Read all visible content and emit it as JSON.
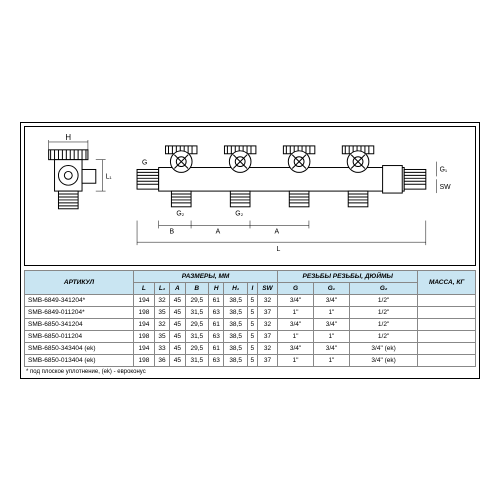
{
  "diagram": {
    "labels": {
      "H": "H",
      "L1": "L₁",
      "H1": "H₁",
      "B": "B",
      "A": "A",
      "L": "L",
      "G": "G",
      "G1": "G₁",
      "G2": "G₂",
      "SW": "SW",
      "I": "I"
    }
  },
  "table": {
    "header_col_article": "АРТИКУЛ",
    "header_group_dims": "РАЗМЕРЫ, ММ",
    "header_group_threads": "РЕЗЬБЫ РЕЗЬБЫ, ДЮЙМЫ",
    "header_mass": "МАССА, КГ",
    "cols_dims": [
      "L",
      "L₁",
      "A",
      "B",
      "H",
      "H₁",
      "I",
      "SW"
    ],
    "cols_threads": [
      "G",
      "G₁",
      "G₂"
    ],
    "rows": [
      {
        "art": "SMB-6849-341204*",
        "L": "194",
        "L1": "32",
        "A": "45",
        "B": "29,5",
        "H": "61",
        "H1": "38,5",
        "I": "5",
        "SW": "32",
        "G": "3/4\"",
        "G1": "3/4\"",
        "G2": "1/2\"",
        "mass": ""
      },
      {
        "art": "SMB-6849-011204*",
        "L": "198",
        "L1": "35",
        "A": "45",
        "B": "31,5",
        "H": "63",
        "H1": "38,5",
        "I": "5",
        "SW": "37",
        "G": "1\"",
        "G1": "1\"",
        "G2": "1/2\"",
        "mass": ""
      },
      {
        "art": "SMB-6850-341204",
        "L": "194",
        "L1": "32",
        "A": "45",
        "B": "29,5",
        "H": "61",
        "H1": "38,5",
        "I": "5",
        "SW": "32",
        "G": "3/4\"",
        "G1": "3/4\"",
        "G2": "1/2\"",
        "mass": ""
      },
      {
        "art": "SMB-6850-011204",
        "L": "198",
        "L1": "35",
        "A": "45",
        "B": "31,5",
        "H": "63",
        "H1": "38,5",
        "I": "5",
        "SW": "37",
        "G": "1\"",
        "G1": "1\"",
        "G2": "1/2\"",
        "mass": ""
      },
      {
        "art": "SMB-6850-343404 (ek)",
        "L": "194",
        "L1": "33",
        "A": "45",
        "B": "29,5",
        "H": "61",
        "H1": "38,5",
        "I": "5",
        "SW": "32",
        "G": "3/4\"",
        "G1": "3/4\"",
        "G2": "3/4\" (ek)",
        "mass": ""
      },
      {
        "art": "SMB-6850-013404 (ek)",
        "L": "198",
        "L1": "36",
        "A": "45",
        "B": "31,5",
        "H": "63",
        "H1": "38,5",
        "I": "5",
        "SW": "37",
        "G": "1\"",
        "G1": "1\"",
        "G2": "3/4\" (ek)",
        "mass": ""
      }
    ]
  },
  "footnote": "* под плоское уплотнение, (ek) - евроконус",
  "style": {
    "header_bg": "#c9e5f2",
    "border_color": "#888888",
    "text_color": "#000000",
    "type": "technical-drawing-with-table"
  }
}
